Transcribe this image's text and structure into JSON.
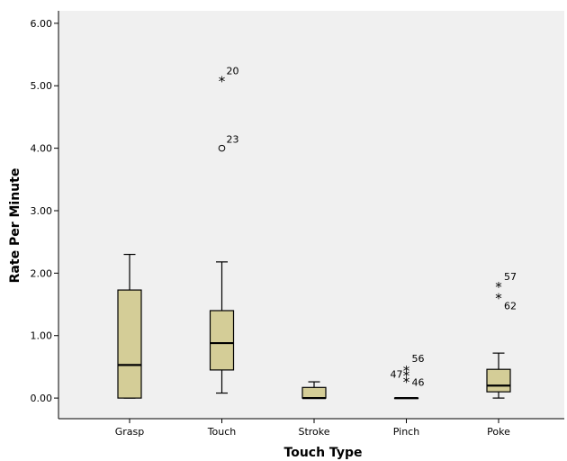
{
  "chart_data": {
    "type": "boxplot",
    "title": "",
    "xlabel": "Touch Type",
    "ylabel": "Rate Per Minute",
    "ylim": [
      -0.33,
      6.2
    ],
    "yticks": [
      0,
      1,
      2,
      3,
      4,
      5,
      6
    ],
    "ytick_labels": [
      "0.00",
      "1.00",
      "2.00",
      "3.00",
      "4.00",
      "5.00",
      "6.00"
    ],
    "grid": false,
    "plot_background": "#f0f0f0",
    "box_fill": "#d4cd97",
    "categories": [
      "Grasp",
      "Touch",
      "Stroke",
      "Pinch",
      "Poke"
    ],
    "boxes": [
      {
        "category": "Grasp",
        "whisker_low": 0.0,
        "q1": 0.0,
        "median": 0.53,
        "q3": 1.73,
        "whisker_high": 2.3
      },
      {
        "category": "Touch",
        "whisker_low": 0.08,
        "q1": 0.45,
        "median": 0.88,
        "q3": 1.4,
        "whisker_high": 2.18
      },
      {
        "category": "Stroke",
        "whisker_low": 0.0,
        "q1": 0.0,
        "median": 0.0,
        "q3": 0.17,
        "whisker_high": 0.26
      },
      {
        "category": "Pinch",
        "whisker_low": 0.0,
        "q1": 0.0,
        "median": 0.0,
        "q3": 0.0,
        "whisker_high": 0.0
      },
      {
        "category": "Poke",
        "whisker_low": 0.0,
        "q1": 0.1,
        "median": 0.2,
        "q3": 0.46,
        "whisker_high": 0.72
      }
    ],
    "outliers": [
      {
        "category": "Touch",
        "value": 5.1,
        "marker": "star",
        "label": "20"
      },
      {
        "category": "Touch",
        "value": 4.0,
        "marker": "circle",
        "label": "23"
      },
      {
        "category": "Pinch",
        "value": 0.46,
        "marker": "star",
        "label": "56"
      },
      {
        "category": "Pinch",
        "value": 0.38,
        "marker": "star",
        "label": "47"
      },
      {
        "category": "Pinch",
        "value": 0.28,
        "marker": "star",
        "label": "46"
      },
      {
        "category": "Poke",
        "value": 1.8,
        "marker": "star",
        "label": "57"
      },
      {
        "category": "Poke",
        "value": 1.62,
        "marker": "star",
        "label": "62"
      }
    ]
  }
}
